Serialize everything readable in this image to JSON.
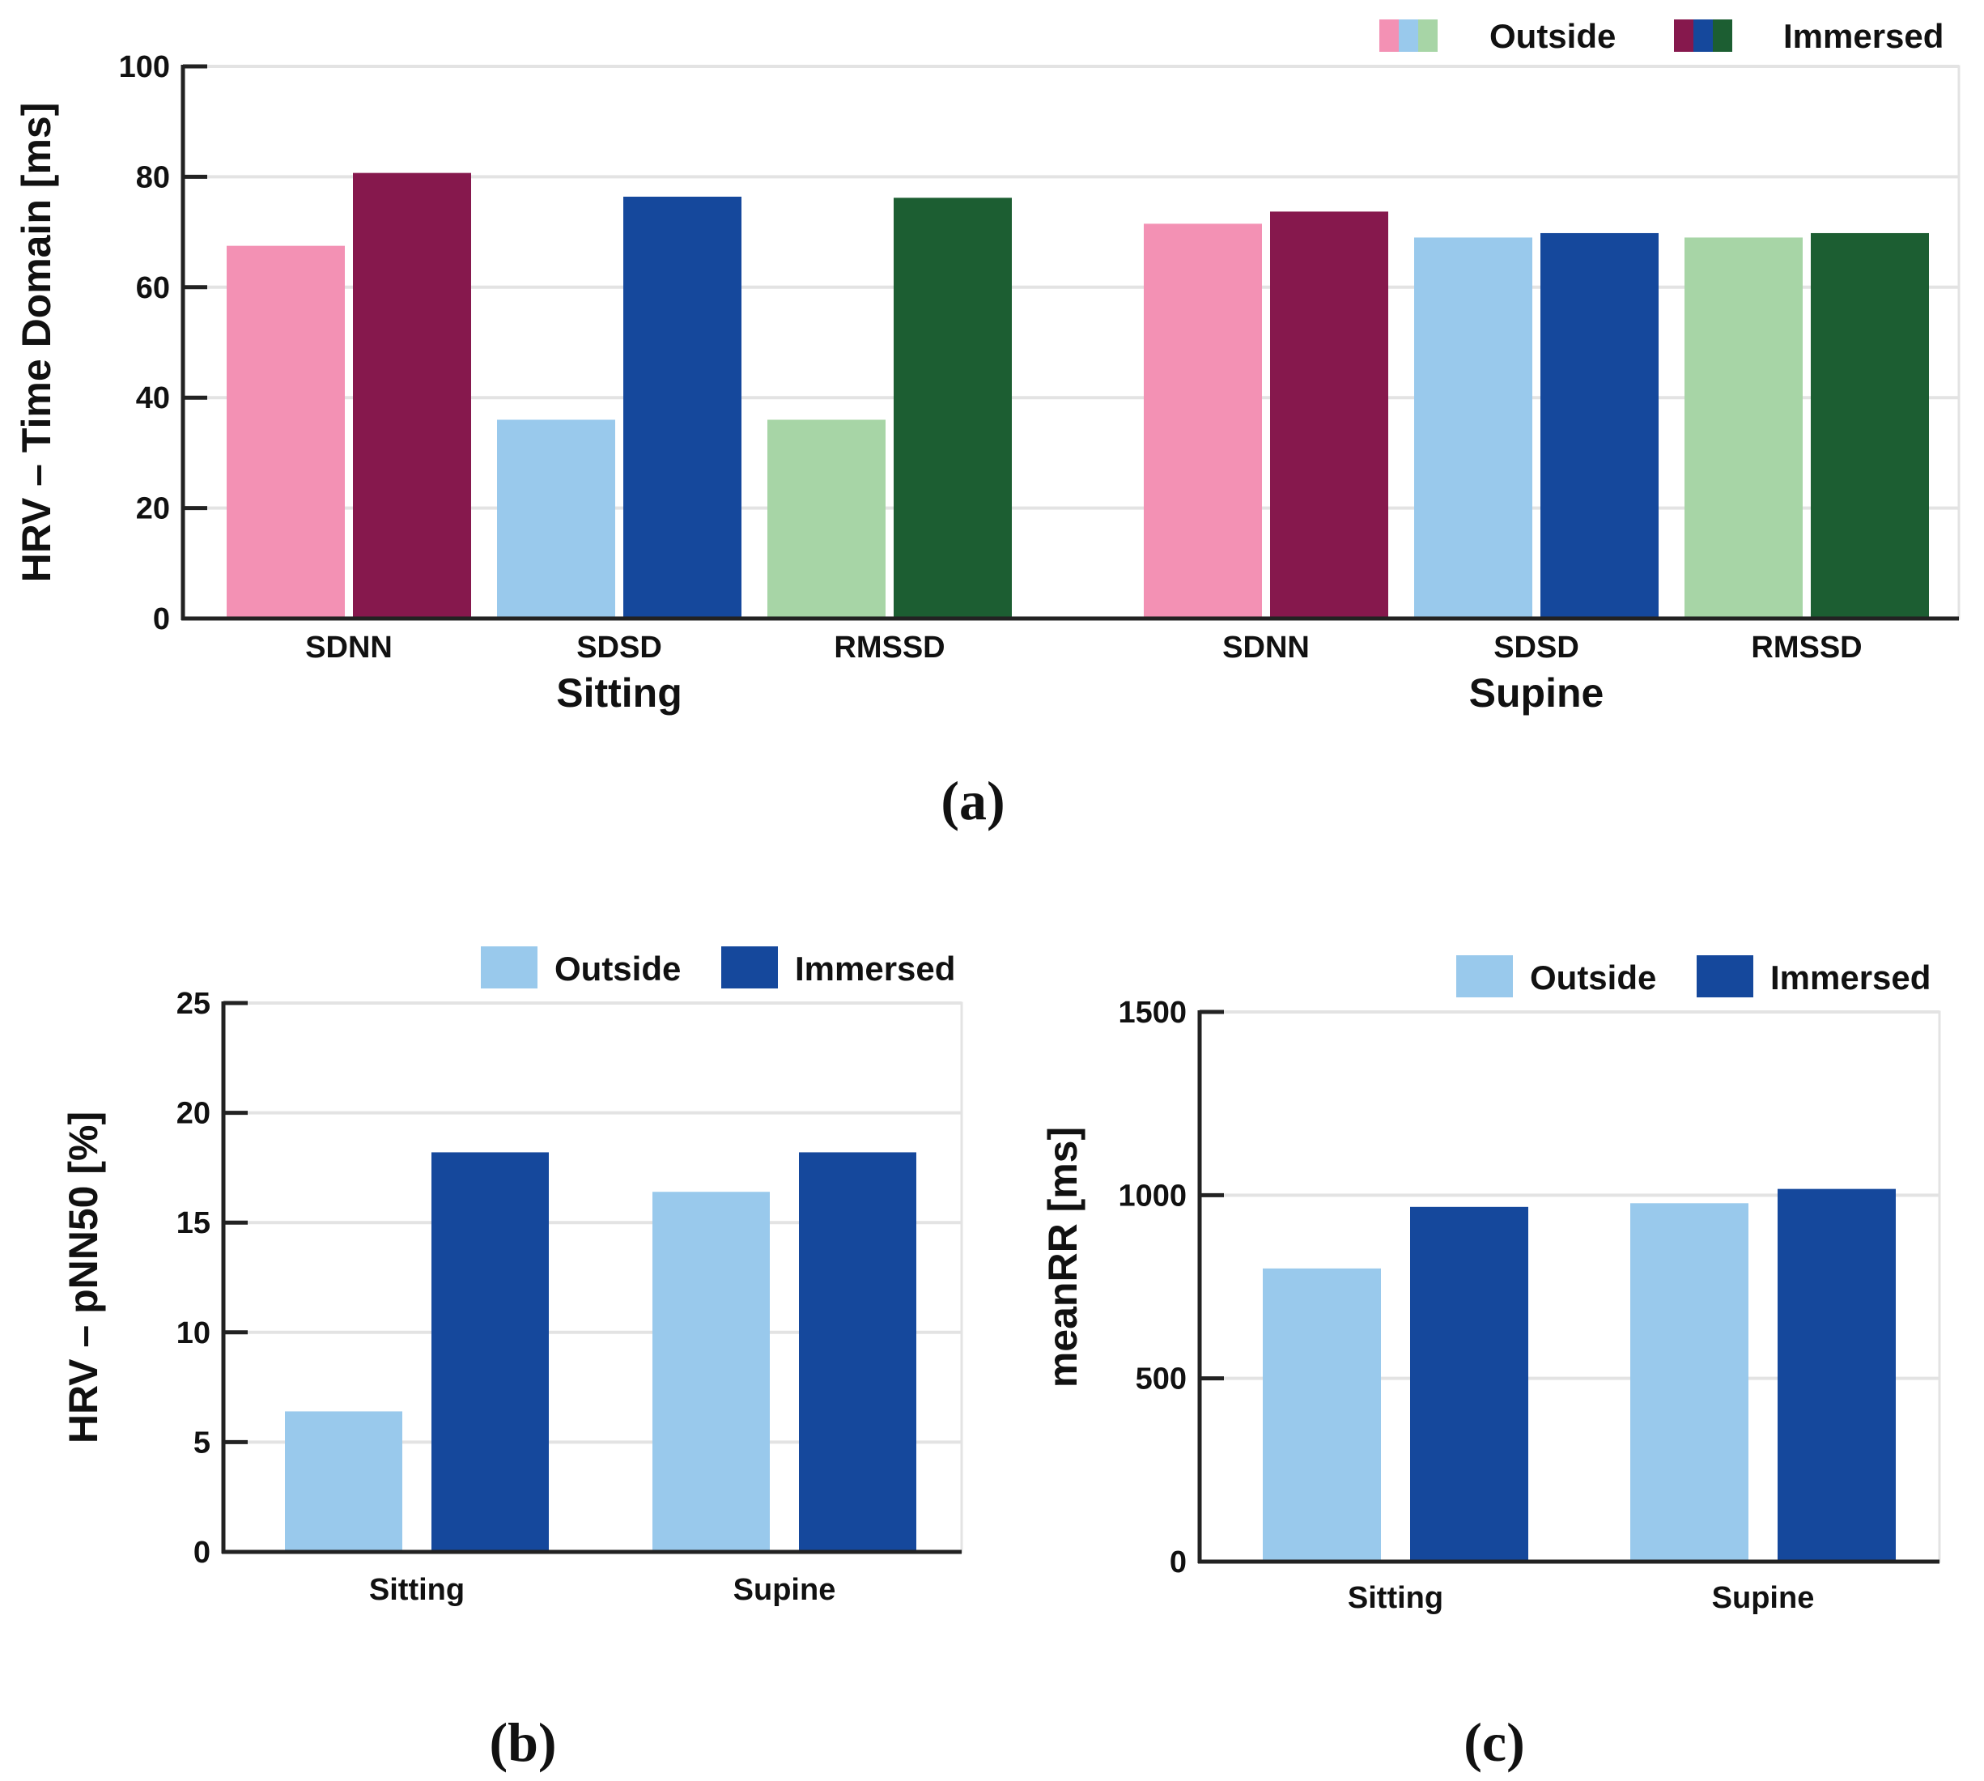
{
  "figure": {
    "panel_tags": [
      "(a)",
      "(b)",
      "(c)"
    ]
  },
  "colors": {
    "outside_pink": "#f391b4",
    "outside_lightblue": "#99c9ec",
    "outside_lightgreen": "#a7d5a6",
    "immersed_maroon": "#86184d",
    "immersed_blue": "#15489c",
    "immersed_green": "#1c5e32",
    "grid": "#e3e3e3",
    "axis": "#222222"
  },
  "chart_data": [
    {
      "id": "a",
      "type": "bar",
      "title": "",
      "ylabel": "HRV – Time Domain [ms]",
      "xlabel": "",
      "ylim": [
        0,
        100
      ],
      "yticks": [
        0,
        20,
        40,
        60,
        80,
        100
      ],
      "grid": true,
      "legend": {
        "placement": "top-right",
        "entries": [
          "Outside",
          "Immersed"
        ]
      },
      "groups": [
        "Sitting",
        "Supine"
      ],
      "categories": [
        "SDNN",
        "SDSD",
        "RMSSD"
      ],
      "series": [
        {
          "name": "Outside",
          "values": {
            "Sitting": [
              67.5,
              36,
              36
            ],
            "Supine": [
              71.5,
              69,
              69
            ]
          }
        },
        {
          "name": "Immersed",
          "values": {
            "Sitting": [
              80.7,
              76.4,
              76.2
            ],
            "Supine": [
              73.7,
              69.8,
              69.8
            ]
          }
        }
      ]
    },
    {
      "id": "b",
      "type": "bar",
      "title": "",
      "ylabel": "HRV – pNN50 [%]",
      "xlabel": "",
      "ylim": [
        0,
        25
      ],
      "yticks": [
        0,
        5,
        10,
        15,
        20,
        25
      ],
      "grid": true,
      "legend": {
        "placement": "top-right",
        "entries": [
          "Outside",
          "Immersed"
        ]
      },
      "categories": [
        "Sitting",
        "Supine"
      ],
      "series": [
        {
          "name": "Outside",
          "values": [
            6.4,
            16.4
          ]
        },
        {
          "name": "Immersed",
          "values": [
            18.2,
            18.2
          ]
        }
      ]
    },
    {
      "id": "c",
      "type": "bar",
      "title": "",
      "ylabel": "meanRR [ms]",
      "xlabel": "",
      "ylim": [
        0,
        1500
      ],
      "yticks": [
        0,
        500,
        1000,
        1500
      ],
      "grid": true,
      "legend": {
        "placement": "top-right",
        "entries": [
          "Outside",
          "Immersed"
        ]
      },
      "categories": [
        "Sitting",
        "Supine"
      ],
      "series": [
        {
          "name": "Outside",
          "values": [
            800,
            978
          ]
        },
        {
          "name": "Immersed",
          "values": [
            968,
            1017
          ]
        }
      ]
    }
  ]
}
